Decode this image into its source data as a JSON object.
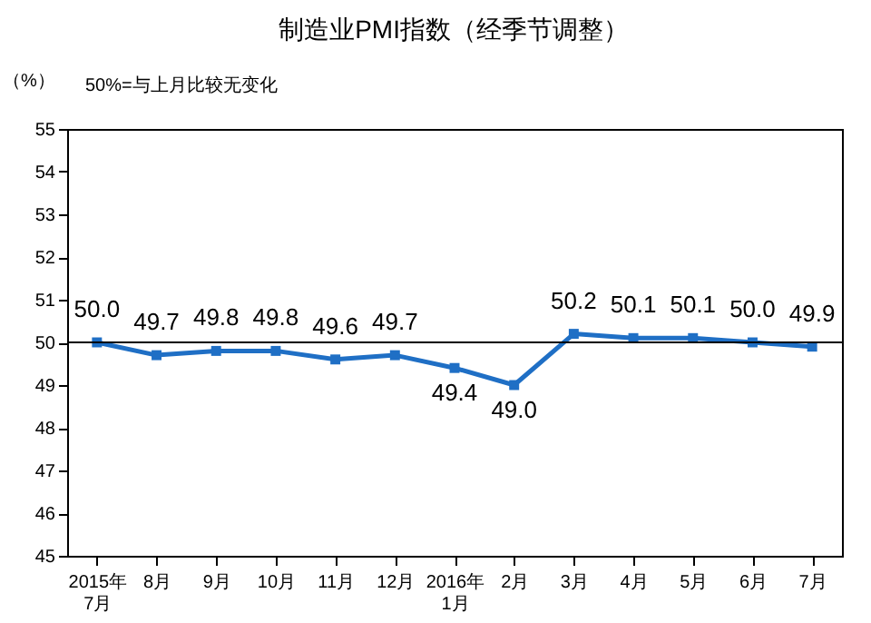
{
  "chart_data": {
    "type": "line",
    "title": "制造业PMI指数（经季节调整）",
    "ylabel": "（%）",
    "annotations": [
      "50%=与上月比较无变化"
    ],
    "categories": [
      "2015年\n7月",
      "8月",
      "9月",
      "10月",
      "11月",
      "12月",
      "2016年\n1月",
      "2月",
      "3月",
      "4月",
      "5月",
      "6月",
      "7月"
    ],
    "series": [
      {
        "color": "#1f6fc5",
        "values": [
          50.0,
          49.7,
          49.8,
          49.8,
          49.6,
          49.7,
          49.4,
          49.0,
          50.2,
          50.1,
          50.1,
          50.0,
          49.9
        ],
        "value_labels": [
          "50.0",
          "49.7",
          "49.8",
          "49.8",
          "49.6",
          "49.7",
          "49.4",
          "49.0",
          "50.2",
          "50.1",
          "50.1",
          "50.0",
          "49.9"
        ]
      }
    ],
    "ylim": [
      45,
      55
    ],
    "yticks": [
      45,
      46,
      47,
      48,
      49,
      50,
      51,
      52,
      53,
      54,
      55
    ],
    "ref_lines": [
      {
        "axis": "y",
        "value": 50,
        "color": "#000000"
      }
    ],
    "marker": "square",
    "grid": false
  }
}
